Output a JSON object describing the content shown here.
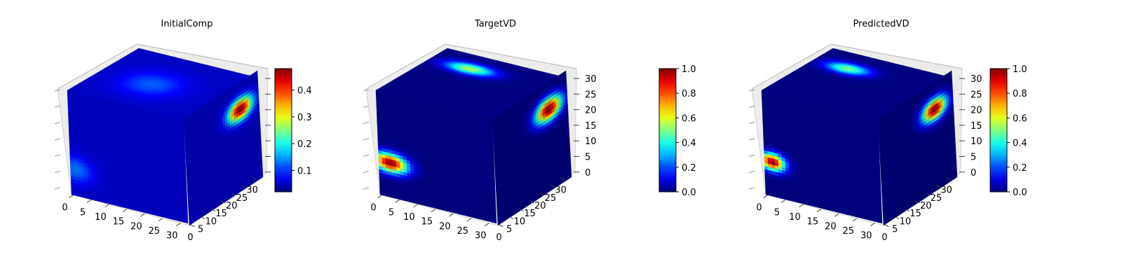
{
  "chart_data": [
    {
      "type": "voxel-3d",
      "title": "InitialComp",
      "x_ticks": [
        "0",
        "5",
        "10",
        "15",
        "20",
        "25",
        "30"
      ],
      "y_ticks": [
        "0",
        "5",
        "10",
        "15",
        "20",
        "25",
        "30"
      ],
      "z_ticks": [],
      "colorbar": {
        "min": 0.02,
        "max": 0.48,
        "ticks": [
          "0.1",
          "0.2",
          "0.3",
          "0.4"
        ],
        "colormap": "jet"
      },
      "background_value": 0.05,
      "blobs": [
        {
          "face": "top",
          "u": 0.45,
          "v": 0.45,
          "value": 0.12,
          "ru": 0.28,
          "rv": 0.3
        },
        {
          "face": "front",
          "u": 0.05,
          "v": 0.75,
          "value": 0.13,
          "ru": 0.18,
          "rv": 0.16
        },
        {
          "face": "side",
          "u": 0.75,
          "v": 0.25,
          "value": 0.48,
          "ru": 0.2,
          "rv": 0.12
        }
      ]
    },
    {
      "type": "voxel-3d",
      "title": "TargetVD",
      "x_ticks": [
        "0",
        "5",
        "10",
        "15",
        "20",
        "25",
        "30"
      ],
      "y_ticks": [
        "0",
        "5",
        "10",
        "15",
        "20",
        "25",
        "30"
      ],
      "z_ticks": [
        "0",
        "5",
        "10",
        "15",
        "20",
        "25",
        "30"
      ],
      "colorbar": {
        "min": 0.0,
        "max": 1.0,
        "ticks": [
          "0.0",
          "0.2",
          "0.4",
          "0.6",
          "0.8",
          "1.0"
        ],
        "colormap": "jet"
      },
      "background_value": 0.0,
      "blobs": [
        {
          "face": "top",
          "u": 0.75,
          "v": 0.35,
          "value": 0.55,
          "ru": 0.12,
          "rv": 0.25
        },
        {
          "face": "front",
          "u": 0.1,
          "v": 0.67,
          "value": 1.0,
          "ru": 0.18,
          "rv": 0.11
        },
        {
          "face": "side",
          "u": 0.75,
          "v": 0.25,
          "value": 1.0,
          "ru": 0.22,
          "rv": 0.13
        }
      ]
    },
    {
      "type": "voxel-3d",
      "title": "PredictedVD",
      "x_ticks": [
        "0",
        "5",
        "10",
        "15",
        "20",
        "25",
        "30"
      ],
      "y_ticks": [
        "0",
        "5",
        "10",
        "15",
        "20",
        "25",
        "30"
      ],
      "z_ticks": [
        "0",
        "5",
        "10",
        "15",
        "20",
        "25",
        "30"
      ],
      "colorbar": {
        "min": 0.0,
        "max": 1.0,
        "ticks": [
          "0.0",
          "0.2",
          "0.4",
          "0.6",
          "0.8",
          "1.0"
        ],
        "colormap": "jet"
      },
      "background_value": 0.0,
      "blobs": [
        {
          "face": "top",
          "u": 0.72,
          "v": 0.3,
          "value": 0.5,
          "ru": 0.12,
          "rv": 0.22
        },
        {
          "face": "front",
          "u": 0.07,
          "v": 0.67,
          "value": 1.0,
          "ru": 0.13,
          "rv": 0.1
        },
        {
          "face": "side",
          "u": 0.75,
          "v": 0.25,
          "value": 1.0,
          "ru": 0.2,
          "rv": 0.12
        }
      ]
    }
  ]
}
